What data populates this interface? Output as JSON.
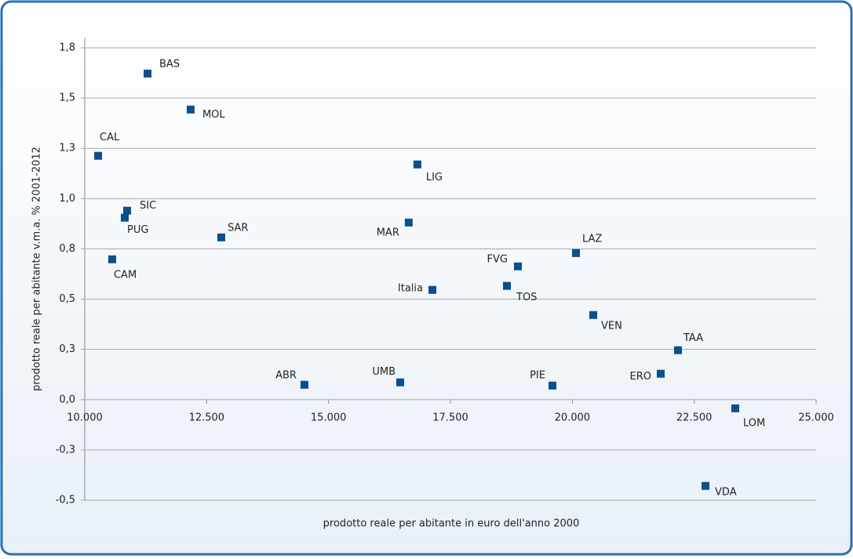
{
  "chart_data": {
    "type": "scatter",
    "x_label": "prodotto reale per abitante in euro dell'anno 2000",
    "y_label": "prodotto reale per abitante v.m.a. % 2001-2012",
    "labels": [
      "BAS",
      "MOL",
      "CAL",
      "LIG",
      "SIC",
      "PUG",
      "MAR",
      "SAR",
      "CAM",
      "LAZ",
      "FVG",
      "TOS",
      "Italia",
      "VEN",
      "TAA",
      "ERO",
      "ABR",
      "UMB",
      "PIE",
      "LOM",
      "VDA"
    ],
    "x": [
      11288,
      12172,
      10274,
      16822,
      10869,
      10821,
      16645,
      12800,
      10563,
      20075,
      18884,
      18659,
      17130,
      20429,
      22167,
      21813,
      14506,
      16470,
      19592,
      23342,
      22731
    ],
    "y": [
      1.622,
      1.443,
      1.213,
      1.17,
      0.94,
      0.905,
      0.881,
      0.807,
      0.698,
      0.729,
      0.663,
      0.566,
      0.546,
      0.421,
      0.246,
      0.129,
      0.074,
      0.086,
      0.07,
      -0.043,
      -0.429
    ],
    "color": "#0b4f8c",
    "xlim": [
      10000,
      25000
    ],
    "xticks": [
      {
        "value": 10000,
        "label": "10.000"
      },
      {
        "value": 12500,
        "label": "12.500"
      },
      {
        "value": 15000,
        "label": "15.000"
      },
      {
        "value": 17500,
        "label": "17.500"
      },
      {
        "value": 20000,
        "label": "20.000"
      },
      {
        "value": 22500,
        "label": "22.500"
      },
      {
        "value": 25000,
        "label": "25.000"
      }
    ],
    "ylim": [
      -0.5,
      1.75
    ],
    "yticks": [
      {
        "value": -0.5,
        "label": "-0,5"
      },
      {
        "value": -0.25,
        "label": "-0,3"
      },
      {
        "value": 0,
        "label": "0,0"
      },
      {
        "value": 0.25,
        "label": "0,3"
      },
      {
        "value": 0.5,
        "label": "0,5"
      },
      {
        "value": 0.75,
        "label": "0,8"
      },
      {
        "value": 1.0,
        "label": "1,0"
      },
      {
        "value": 1.25,
        "label": "1,3"
      },
      {
        "value": 1.5,
        "label": "1,5"
      },
      {
        "value": 1.75,
        "label": "1,8"
      }
    ],
    "grid": true
  }
}
